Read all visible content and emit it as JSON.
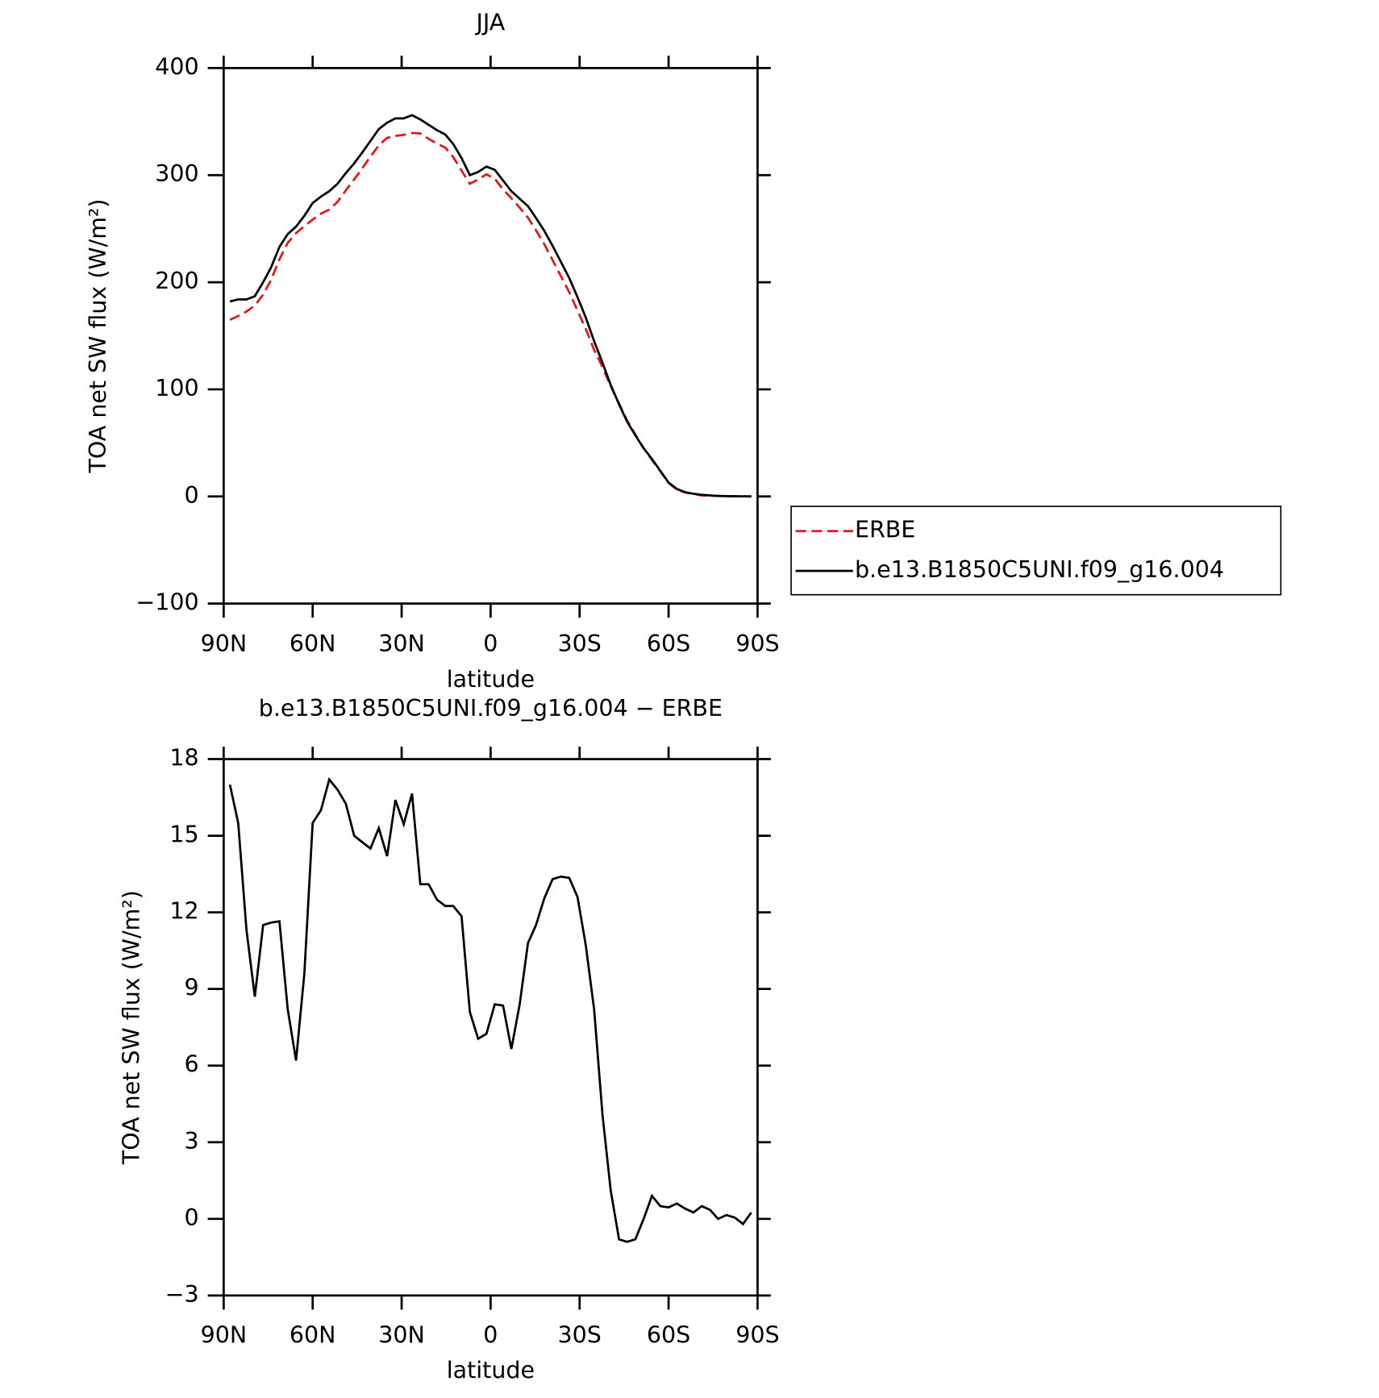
{
  "chart_data": [
    {
      "type": "line",
      "title": "JJA",
      "x_label": "latitude",
      "y_label": "TOA net SW flux (W/m²)",
      "x": [
        87.9,
        85.1,
        82.3,
        79.5,
        76.7,
        74.0,
        71.2,
        68.4,
        65.6,
        62.8,
        60.0,
        57.2,
        54.4,
        51.6,
        48.8,
        46.0,
        43.3,
        40.5,
        37.7,
        34.9,
        32.1,
        29.3,
        26.5,
        23.7,
        20.9,
        18.1,
        15.3,
        12.6,
        9.8,
        7.0,
        4.2,
        1.4,
        -1.4,
        -4.2,
        -7.0,
        -9.8,
        -12.6,
        -15.3,
        -18.1,
        -20.9,
        -23.7,
        -26.5,
        -29.3,
        -32.1,
        -34.9,
        -37.7,
        -40.5,
        -43.3,
        -46.0,
        -48.8,
        -51.6,
        -54.4,
        -57.2,
        -60.0,
        -62.8,
        -65.6,
        -68.4,
        -71.2,
        -74.0,
        -76.7,
        -79.5,
        -82.3,
        -85.1,
        -87.9
      ],
      "xlim": [
        90,
        -90
      ],
      "xticks": [
        {
          "value": 90,
          "label": "90N"
        },
        {
          "value": 60,
          "label": "60N"
        },
        {
          "value": 30,
          "label": "30N"
        },
        0,
        {
          "value": -30,
          "label": "30S"
        },
        {
          "value": -60,
          "label": "60S"
        },
        {
          "value": -90,
          "label": "90S"
        }
      ],
      "ylim": [
        -100,
        400
      ],
      "yticks": [
        {
          "value": -100,
          "label": "−100"
        },
        0,
        100,
        200,
        300,
        400
      ],
      "legend": "right",
      "series": [
        {
          "name": "ERBE",
          "color": "#e8141c",
          "dash": true,
          "values": [
            165,
            168.5,
            172.7,
            178.3,
            188.5,
            202.4,
            221.4,
            236.8,
            245.8,
            252.4,
            258.5,
            264,
            267.8,
            275.2,
            285.8,
            296,
            306.3,
            317.5,
            327.7,
            334.8,
            336.6,
            337.6,
            339.4,
            338.9,
            333.9,
            329.5,
            325.8,
            316.8,
            304.2,
            291.9,
            296,
            300.8,
            296.6,
            286.7,
            278.4,
            269.6,
            260.2,
            248.5,
            235.5,
            220.7,
            205.6,
            190.7,
            173.4,
            156.3,
            136.8,
            120.9,
            102.9,
            86.8,
            70.9,
            57.8,
            45,
            34.1,
            23.5,
            12.6,
            6.4,
            3.6,
            2.3,
            1,
            0.7,
            0.5,
            0.2,
            0.2,
            0.3,
            -0.2
          ]
        },
        {
          "name": "b.e13.B1850C5UNI.f09_g16.004",
          "color": "#000000",
          "dash": false,
          "values": [
            182,
            184,
            184,
            187,
            200,
            214,
            233,
            245,
            252,
            262,
            274,
            280,
            285,
            292,
            302,
            311,
            321,
            332,
            343,
            349,
            353,
            353,
            356,
            352,
            347,
            342,
            338,
            329,
            316,
            300,
            303,
            308,
            305,
            295,
            285,
            278,
            271,
            260,
            248,
            234,
            219,
            204,
            186,
            167,
            145,
            125,
            104,
            86,
            70,
            57,
            45,
            35,
            24,
            13,
            7,
            4,
            2.5,
            1.5,
            1,
            0.5,
            0.3,
            0.2,
            0.1,
            0.1
          ]
        }
      ]
    },
    {
      "type": "line",
      "title": "b.e13.B1850C5UNI.f09_g16.004 − ERBE",
      "x_label": "latitude",
      "y_label": "TOA net SW flux (W/m²)",
      "x": [
        87.9,
        85.1,
        82.3,
        79.5,
        76.7,
        74.0,
        71.2,
        68.4,
        65.6,
        62.8,
        60.0,
        57.2,
        54.4,
        51.6,
        48.8,
        46.0,
        43.3,
        40.5,
        37.7,
        34.9,
        32.1,
        29.3,
        26.5,
        23.7,
        20.9,
        18.1,
        15.3,
        12.6,
        9.8,
        7.0,
        4.2,
        1.4,
        -1.4,
        -4.2,
        -7.0,
        -9.8,
        -12.6,
        -15.3,
        -18.1,
        -20.9,
        -23.7,
        -26.5,
        -29.3,
        -32.1,
        -34.9,
        -37.7,
        -40.5,
        -43.3,
        -46.0,
        -48.8,
        -51.6,
        -54.4,
        -57.2,
        -60.0,
        -62.8,
        -65.6,
        -68.4,
        -71.2,
        -74.0,
        -76.7,
        -79.5,
        -82.3,
        -85.1,
        -87.9
      ],
      "xlim": [
        90,
        -90
      ],
      "xticks": [
        {
          "value": 90,
          "label": "90N"
        },
        {
          "value": 60,
          "label": "60N"
        },
        {
          "value": 30,
          "label": "30N"
        },
        0,
        {
          "value": -30,
          "label": "30S"
        },
        {
          "value": -60,
          "label": "60S"
        },
        {
          "value": -90,
          "label": "90S"
        }
      ],
      "ylim": [
        -3,
        18
      ],
      "yticks": [
        {
          "value": -3,
          "label": "−3"
        },
        0,
        3,
        6,
        9,
        12,
        15,
        18
      ],
      "series": [
        {
          "color": "#000000",
          "dash": false,
          "values": [
            17.0,
            15.5,
            11.3,
            8.7,
            11.5,
            11.6,
            11.65,
            8.2,
            6.2,
            9.6,
            15.5,
            16.0,
            17.2,
            16.8,
            16.25,
            15.0,
            14.75,
            14.5,
            15.3,
            14.2,
            16.4,
            15.45,
            16.65,
            13.1,
            13.1,
            12.5,
            12.25,
            12.25,
            11.85,
            8.1,
            7.05,
            7.25,
            8.4,
            8.35,
            6.65,
            8.4,
            10.8,
            11.5,
            12.55,
            13.3,
            13.4,
            13.35,
            12.6,
            10.7,
            8.2,
            4.1,
            1.1,
            -0.8,
            -0.9,
            -0.8,
            0.0,
            0.9,
            0.5,
            0.45,
            0.6,
            0.4,
            0.25,
            0.5,
            0.35,
            0.0,
            0.15,
            0.05,
            -0.2,
            0.25
          ]
        }
      ]
    }
  ]
}
